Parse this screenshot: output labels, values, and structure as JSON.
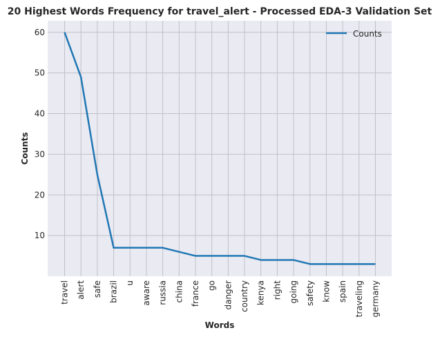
{
  "chart_data": {
    "type": "line",
    "title": "20 Highest Words Frequency for travel_alert - Processed EDA-3 Validation Set",
    "xlabel": "Words",
    "ylabel": "Counts",
    "categories": [
      "travel",
      "alert",
      "safe",
      "brazil",
      "u",
      "aware",
      "russia",
      "china",
      "france",
      "go",
      "danger",
      "country",
      "kenya",
      "right",
      "going",
      "safety",
      "know",
      "spain",
      "traveling",
      "germany"
    ],
    "series": [
      {
        "name": "Counts",
        "values": [
          60,
          49,
          25,
          7,
          7,
          7,
          7,
          6,
          5,
          5,
          5,
          5,
          4,
          4,
          4,
          3,
          3,
          3,
          3,
          3
        ]
      }
    ],
    "yticks": [
      10,
      20,
      30,
      40,
      50,
      60
    ],
    "ylim": [
      0,
      62.85
    ],
    "grid": true,
    "legend_position": "top-right",
    "colors": {
      "line": "#1f77b4",
      "plot_bg": "#eaeaf2",
      "grid": "#c0c0c8"
    }
  }
}
